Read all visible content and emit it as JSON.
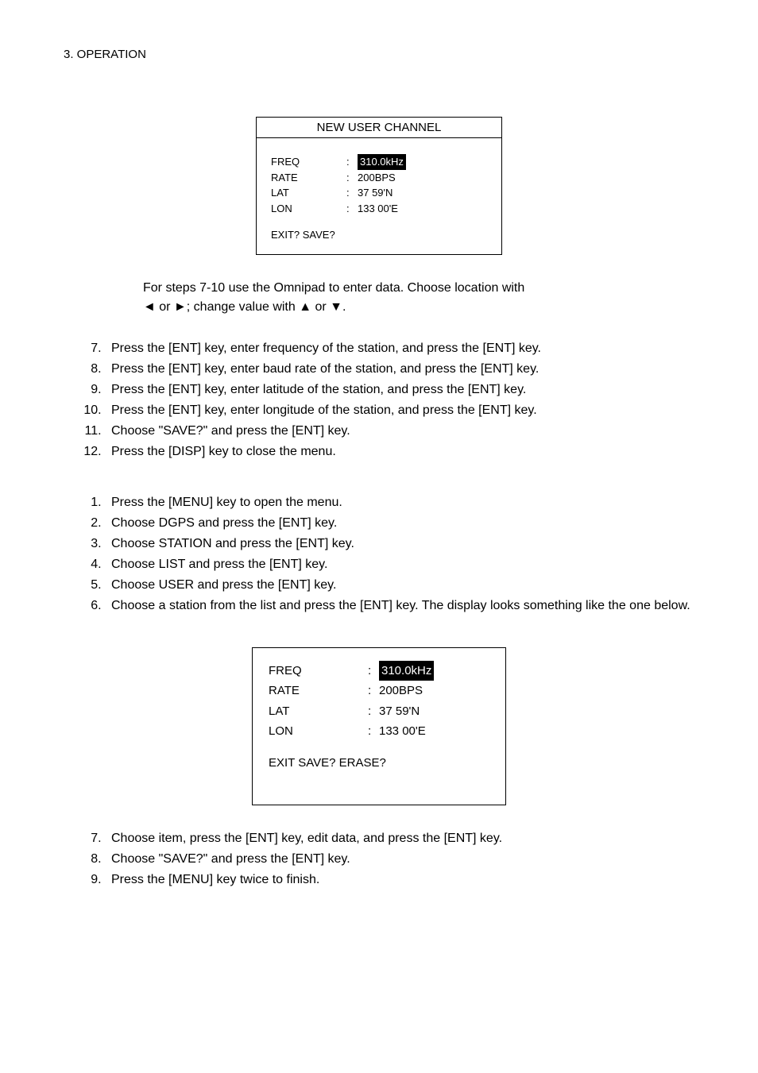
{
  "header": {
    "text": "3. OPERATION"
  },
  "panel1": {
    "title": "NEW USER CHANNEL",
    "rows": [
      {
        "label": "FREQ",
        "value": "310.0kHz",
        "highlighted": true
      },
      {
        "label": "RATE",
        "value": "200BPS",
        "highlighted": false
      },
      {
        "label": "LAT",
        "value": "37 59'N",
        "highlighted": false
      },
      {
        "label": "LON",
        "value": "133 00'E",
        "highlighted": false
      }
    ],
    "foot": "EXIT?  SAVE?"
  },
  "noteBlock": {
    "line1": "For steps 7-10 use the Omnipad to enter data. Choose location with",
    "line2": "◄ or ►; change value with ▲ or ▼."
  },
  "list1": [
    "Press the [ENT] key, enter frequency of the station, and press the [ENT] key.",
    "Press the [ENT] key, enter baud rate of the station, and press the [ENT] key.",
    "Press the [ENT] key, enter latitude of the station, and press the [ENT] key.",
    "Press the [ENT] key, enter longitude of the station, and press the [ENT] key.",
    "Choose \"SAVE?\" and press the [ENT] key.",
    "Press the [DISP] key to close the menu."
  ],
  "list2": [
    "Press the [MENU] key to open the menu.",
    "Choose DGPS and press the [ENT] key.",
    "Choose STATION and press the [ENT] key.",
    "Choose LIST and press the [ENT] key.",
    "Choose USER and press the [ENT] key.",
    "Choose a station from the list and press the [ENT] key. The display looks something like the one below."
  ],
  "panel2": {
    "rows": [
      {
        "label": "FREQ",
        "value": "310.0kHz",
        "highlighted": true
      },
      {
        "label": "RATE",
        "value": "200BPS",
        "highlighted": false
      },
      {
        "label": "LAT",
        "value": "37 59'N",
        "highlighted": false
      },
      {
        "label": "LON",
        "value": "133 00'E",
        "highlighted": false
      }
    ],
    "foot": "EXIT  SAVE?   ERASE?"
  },
  "list3": [
    "Choose item, press the [ENT] key, edit data, and press the [ENT] key.",
    "Choose \"SAVE?\" and press the [ENT] key.",
    "Press the [MENU] key twice to finish."
  ]
}
